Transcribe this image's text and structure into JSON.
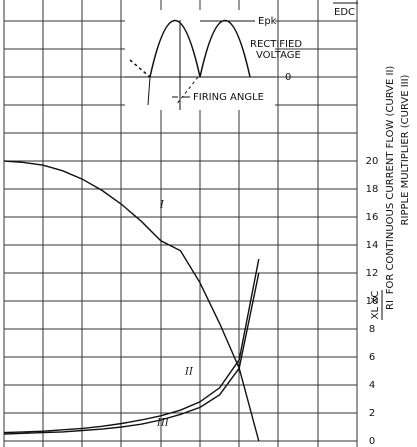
{
  "chart_data": {
    "type": "line",
    "categories": [
      null,
      null,
      null,
      null,
      null,
      null,
      null,
      null,
      null,
      null,
      null,
      null,
      null,
      null
    ],
    "series": [
      {
        "name": null,
        "color": "#111111",
        "values": [
          20,
          19.9,
          19.7,
          19.3,
          18.7,
          17.9,
          16.9,
          15.7,
          14.3,
          13.6,
          11.3,
          8.4,
          5.2,
          0
        ]
      },
      {
        "name": null,
        "color": "#111111",
        "values": [
          0.6,
          0.65,
          0.7,
          0.8,
          0.9,
          1.05,
          1.25,
          1.5,
          1.8,
          2.2,
          2.8,
          3.8,
          5.8,
          13
        ]
      },
      {
        "name": null,
        "color": "#111111",
        "values": [
          0.5,
          0.55,
          0.6,
          0.65,
          0.75,
          0.85,
          1.0,
          1.2,
          1.5,
          1.9,
          2.4,
          3.3,
          5.2,
          12
        ]
      }
    ],
    "ylim": [
      0,
      20
    ],
    "yticks": [
      0,
      2,
      4,
      6,
      8,
      10,
      12,
      14,
      16,
      18,
      20
    ],
    "grid": true,
    "y_label": "FOR CONTINUOUS CURRENT FLOW (CURVE II)",
    "y_label_fraction": {
      "numerator": "XL XC",
      "denominator": "RI"
    },
    "y_label_2": "RIPPLE MULTIPLIER (CURVE III)",
    "curve_labels": [
      "I",
      "II",
      "III"
    ],
    "inset": {
      "peak": "Epk",
      "rectified": "RECTIFIED",
      "voltage": "VOLTAGE",
      "zero": "0",
      "firing": "FIRING ANGLE",
      "edc": "EDC"
    }
  }
}
